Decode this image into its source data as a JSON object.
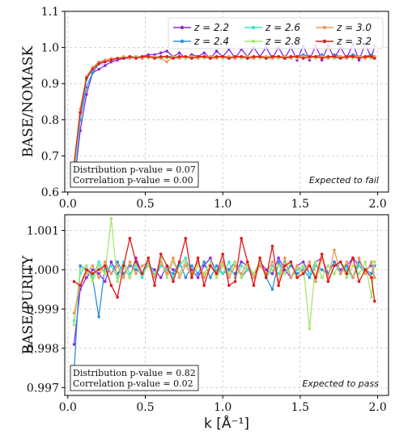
{
  "chart_data": [
    {
      "type": "line",
      "ylabel": "BASE/NOMASK",
      "xlabel": "",
      "xlim": [
        -0.02,
        2.07
      ],
      "ylim": [
        0.6,
        1.1
      ],
      "xticks": [
        "0.0",
        "0.5",
        "1.0",
        "1.5",
        "2.0"
      ],
      "yticks": [
        "0.6",
        "0.7",
        "0.8",
        "0.9",
        "1.0",
        "1.1"
      ],
      "grid": true,
      "legend_position": "top-right",
      "annotation": "Expected to fail",
      "stats": [
        "Distribution p-value = 0.07",
        "Correlation p-value = 0.00"
      ],
      "series": [
        {
          "name": "z = 2.2",
          "color": "#8a2be2",
          "values": [
            0.62,
            0.77,
            0.87,
            0.93,
            0.94,
            0.95,
            0.96,
            0.965,
            0.97,
            0.97,
            0.975,
            0.975,
            0.98,
            0.98,
            0.985,
            0.99,
            0.975,
            0.985,
            0.97,
            0.98,
            0.975,
            0.985,
            0.97,
            0.99,
            0.975,
            0.995,
            0.97,
            0.995,
            0.975,
            1.0,
            0.975,
            1.0,
            0.97,
            1.0,
            0.97,
            1.0,
            0.965,
            1.005,
            0.965,
            1.005,
            0.965,
            1.005,
            0.97,
            1.0,
            0.97,
            1.01,
            0.965,
            1.01,
            0.97,
            1.005
          ]
        },
        {
          "name": "z = 2.4",
          "color": "#2a8fe0",
          "values": [
            0.63,
            0.8,
            0.89,
            0.93,
            0.955,
            0.965,
            0.965,
            0.97,
            0.97,
            0.97,
            0.975,
            0.97,
            0.975,
            0.975,
            0.97,
            0.975,
            0.975,
            0.97,
            0.975,
            0.975,
            0.97,
            0.975,
            0.975,
            0.97,
            0.975,
            0.975,
            0.97,
            0.975,
            0.975,
            0.97,
            0.975,
            0.975,
            0.97,
            0.975,
            0.975,
            0.97,
            0.975,
            0.98,
            0.975,
            0.975,
            0.98,
            0.97,
            0.98,
            0.975,
            0.975,
            0.98,
            0.975,
            0.975,
            0.98,
            0.975
          ]
        },
        {
          "name": "z = 2.6",
          "color": "#3ae6c8",
          "values": [
            0.64,
            0.81,
            0.91,
            0.94,
            0.96,
            0.965,
            0.965,
            0.97,
            0.97,
            0.975,
            0.975,
            0.97,
            0.975,
            0.97,
            0.975,
            0.975,
            0.97,
            0.975,
            0.975,
            0.97,
            0.975,
            0.975,
            0.97,
            0.975,
            0.975,
            0.97,
            0.975,
            0.975,
            0.97,
            0.975,
            0.975,
            0.97,
            0.975,
            0.975,
            0.97,
            0.975,
            0.975,
            0.97,
            0.975,
            0.975,
            0.97,
            0.975,
            0.975,
            0.97,
            0.975,
            0.975,
            0.97,
            0.975,
            0.975,
            0.97
          ]
        },
        {
          "name": "z = 2.8",
          "color": "#a8e66e",
          "values": [
            0.66,
            0.82,
            0.915,
            0.945,
            0.96,
            0.965,
            0.965,
            0.97,
            0.975,
            0.97,
            0.975,
            0.975,
            0.97,
            0.975,
            0.975,
            0.97,
            0.975,
            0.975,
            0.97,
            0.975,
            0.975,
            0.97,
            0.975,
            0.975,
            0.97,
            0.975,
            0.975,
            0.97,
            0.975,
            0.975,
            0.97,
            0.975,
            0.975,
            0.97,
            0.975,
            0.975,
            0.97,
            0.975,
            0.975,
            0.97,
            0.975,
            0.975,
            0.97,
            0.975,
            0.975,
            0.97,
            0.975,
            0.975,
            0.97,
            0.975
          ]
        },
        {
          "name": "z = 3.0",
          "color": "#f0975a",
          "values": [
            0.67,
            0.83,
            0.92,
            0.945,
            0.96,
            0.965,
            0.97,
            0.97,
            0.975,
            0.97,
            0.975,
            0.97,
            0.975,
            0.975,
            0.97,
            0.96,
            0.975,
            0.97,
            0.975,
            0.975,
            0.97,
            0.975,
            0.975,
            0.97,
            0.975,
            0.975,
            0.97,
            0.975,
            0.975,
            0.97,
            0.975,
            0.975,
            0.97,
            0.975,
            0.975,
            0.97,
            0.975,
            0.975,
            0.97,
            0.975,
            0.975,
            0.97,
            0.975,
            0.975,
            0.97,
            0.975,
            0.975,
            0.97,
            0.975,
            0.975
          ]
        },
        {
          "name": "z = 3.2",
          "color": "#e01a1a",
          "values": [
            0.68,
            0.82,
            0.915,
            0.94,
            0.955,
            0.96,
            0.965,
            0.97,
            0.97,
            0.975,
            0.97,
            0.975,
            0.975,
            0.97,
            0.975,
            0.975,
            0.97,
            0.975,
            0.975,
            0.97,
            0.975,
            0.975,
            0.97,
            0.975,
            0.975,
            0.97,
            0.975,
            0.975,
            0.97,
            0.975,
            0.975,
            0.97,
            0.975,
            0.975,
            0.97,
            0.975,
            0.975,
            0.97,
            0.975,
            0.975,
            0.97,
            0.975,
            0.975,
            0.97,
            0.975,
            0.975,
            0.97,
            0.975,
            0.975,
            0.97
          ]
        }
      ],
      "x": [
        0.04,
        0.08,
        0.12,
        0.16,
        0.2,
        0.24,
        0.28,
        0.32,
        0.36,
        0.4,
        0.44,
        0.48,
        0.52,
        0.56,
        0.6,
        0.64,
        0.68,
        0.72,
        0.76,
        0.8,
        0.84,
        0.88,
        0.92,
        0.96,
        1.0,
        1.04,
        1.08,
        1.12,
        1.16,
        1.2,
        1.24,
        1.28,
        1.32,
        1.36,
        1.4,
        1.44,
        1.48,
        1.52,
        1.56,
        1.6,
        1.64,
        1.68,
        1.72,
        1.76,
        1.8,
        1.84,
        1.88,
        1.92,
        1.96,
        1.98
      ]
    },
    {
      "type": "line",
      "ylabel": "BASE/PURITY",
      "xlabel": "k [Å⁻¹]",
      "xlim": [
        -0.02,
        2.07
      ],
      "ylim": [
        0.9968,
        1.0014
      ],
      "xticks": [
        "0.0",
        "0.5",
        "1.0",
        "1.5",
        "2.0"
      ],
      "yticks": [
        "0.997",
        "0.998",
        "0.999",
        "1.000",
        "1.001"
      ],
      "grid": true,
      "annotation": "Expected to pass",
      "stats": [
        "Distribution p-value = 0.82",
        "Correlation p-value = 0.02"
      ],
      "x": [
        0.04,
        0.08,
        0.12,
        0.16,
        0.2,
        0.24,
        0.28,
        0.32,
        0.36,
        0.4,
        0.44,
        0.48,
        0.52,
        0.56,
        0.6,
        0.64,
        0.68,
        0.72,
        0.76,
        0.8,
        0.84,
        0.88,
        0.92,
        0.96,
        1.0,
        1.04,
        1.08,
        1.12,
        1.16,
        1.2,
        1.24,
        1.28,
        1.32,
        1.36,
        1.4,
        1.44,
        1.48,
        1.52,
        1.56,
        1.6,
        1.64,
        1.68,
        1.72,
        1.76,
        1.8,
        1.84,
        1.88,
        1.92,
        1.96,
        1.98
      ],
      "series": [
        {
          "name": "z = 2.2",
          "color": "#8a2be2",
          "values": [
            0.9981,
            0.9995,
            0.9998,
            1.0,
            0.9999,
            0.9997,
            1.0002,
            0.9999,
            1.0001,
            0.9998,
            1.0003,
            0.9999,
            1.0001,
            1.0,
            0.9998,
            1.0001,
            1.0,
            0.9999,
            1.0002,
            1.0,
            0.9998,
            1.0001,
            1.0003,
            0.9999,
            1.0001,
            1.0,
            0.9999,
            1.0002,
            1.0001,
            0.9998,
            1.0002,
            1.0,
            0.9999,
            1.0003,
            1.0,
            0.9998,
            1.0001,
            1.0002,
            0.9999,
            1.0002,
            1.0003,
            0.9999,
            1.0002,
            1.0,
            1.0001,
            1.0003,
            1.0001,
            1.0,
            1.0001,
            1.0001
          ]
        },
        {
          "name": "z = 2.4",
          "color": "#2a8fe0",
          "values": [
            0.9974,
            1.0001,
            1.0,
            0.9998,
            0.9988,
            1.0001,
            0.9999,
            1.0002,
            0.9999,
            1.0001,
            1.0,
            0.9999,
            1.0002,
            0.9998,
            1.0001,
            1.0,
            0.9999,
            1.0002,
            0.9998,
            1.0001,
            0.9999,
            1.0002,
            0.9998,
            1.0001,
            0.9999,
            1.0,
            1.0002,
            0.9998,
            1.0,
            0.9999,
            1.0002,
            0.9998,
            0.9995,
            1.0002,
            0.9999,
            1.0001,
            0.9999,
            1.0,
            0.9998,
            1.0001,
            1.0,
            0.9999,
            1.0002,
            0.9999,
            1.0001,
            0.9998,
            1.0002,
            1.0,
            0.9999,
            1.0001
          ]
        },
        {
          "name": "z = 2.6",
          "color": "#3ae6c8",
          "values": [
            0.9987,
            0.9999,
            1.0001,
            0.9998,
            1.0002,
            0.9999,
            1.0001,
            0.9998,
            1.0002,
            0.9999,
            1.0001,
            0.9998,
            1.0002,
            0.9999,
            1.0001,
            1.0,
            0.9998,
            1.0001,
            1.0003,
            0.9999,
            1.0002,
            0.9998,
            1.0001,
            1.0,
            0.9999,
            1.0002,
            0.9998,
            1.0001,
            1.0,
            0.9999,
            1.0002,
            0.9998,
            1.0001,
            0.9999,
            1.0002,
            0.9998,
            1.0,
            1.0001,
            0.9999,
            1.0002,
            0.9998,
            1.0001,
            0.9999,
            1.0002,
            1.0,
            0.9998,
            1.0001,
            0.9999,
            1.0002,
            0.9998
          ]
        },
        {
          "name": "z = 2.8",
          "color": "#a8e66e",
          "values": [
            0.9986,
            1.0,
            1.0001,
            0.9997,
            1.0001,
            0.9999,
            1.0013,
            0.9997,
            1.0001,
            0.9998,
            1.0002,
            0.9999,
            1.0001,
            0.9998,
            1.0003,
            0.9998,
            1.0002,
            0.9999,
            1.0002,
            0.9998,
            1.0001,
            0.9999,
            1.0002,
            0.9998,
            1.0001,
            0.9999,
            1.0002,
            0.9998,
            1.0001,
            0.9999,
            1.0002,
            0.9998,
            1.0,
            1.0001,
            0.9999,
            1.0002,
            0.9998,
            1.0001,
            0.9985,
            1.0002,
            0.9998,
            1.0001,
            0.9999,
            1.0002,
            0.9998,
            1.0001,
            0.9999,
            1.0002,
            0.9993,
            1.0002
          ]
        },
        {
          "name": "z = 3.0",
          "color": "#f0975a",
          "values": [
            0.9989,
            0.9996,
            0.9999,
            1.0001,
            0.9998,
            1.0002,
            0.9999,
            1.0001,
            0.9998,
            1.0002,
            0.9999,
            1.0001,
            1.0002,
            0.9998,
            1.0002,
            0.9999,
            1.0003,
            0.9998,
            1.0001,
            0.9999,
            1.0002,
            0.9998,
            1.0001,
            0.9999,
            1.0002,
            0.9998,
            1.0001,
            0.9999,
            1.0002,
            0.9998,
            1.0001,
            0.9999,
            1.0002,
            0.9997,
            1.0003,
            0.9998,
            1.0001,
            0.9999,
            1.0002,
            0.9997,
            1.0003,
            0.9998,
            1.0005,
            0.9999,
            1.0002,
            0.9998,
            1.0003,
            0.9999,
            1.0002,
            0.9998
          ]
        },
        {
          "name": "z = 3.2",
          "color": "#e01a1a",
          "values": [
            0.9997,
            0.9996,
            1.0,
            0.9999,
            1.0,
            1.0001,
            0.9996,
            0.9993,
            1.0001,
            1.0008,
            1.0002,
            0.9999,
            1.0003,
            0.9996,
            1.0004,
            1.0001,
            0.9997,
            1.0002,
            1.0008,
            0.9998,
            1.0003,
            0.9996,
            1.0001,
            0.9999,
            1.0004,
            0.9996,
            0.9997,
            1.0008,
            1.0002,
            0.9996,
            1.0003,
            0.9998,
            1.0006,
            0.9996,
            1.0001,
            1.0002,
            0.9998,
            0.9999,
            1.0001,
            0.9998,
            1.0004,
            0.9997,
            1.0001,
            1.0002,
            0.9999,
            1.0003,
            0.9997,
            1.0,
            0.9998,
            0.9992
          ]
        }
      ]
    }
  ]
}
